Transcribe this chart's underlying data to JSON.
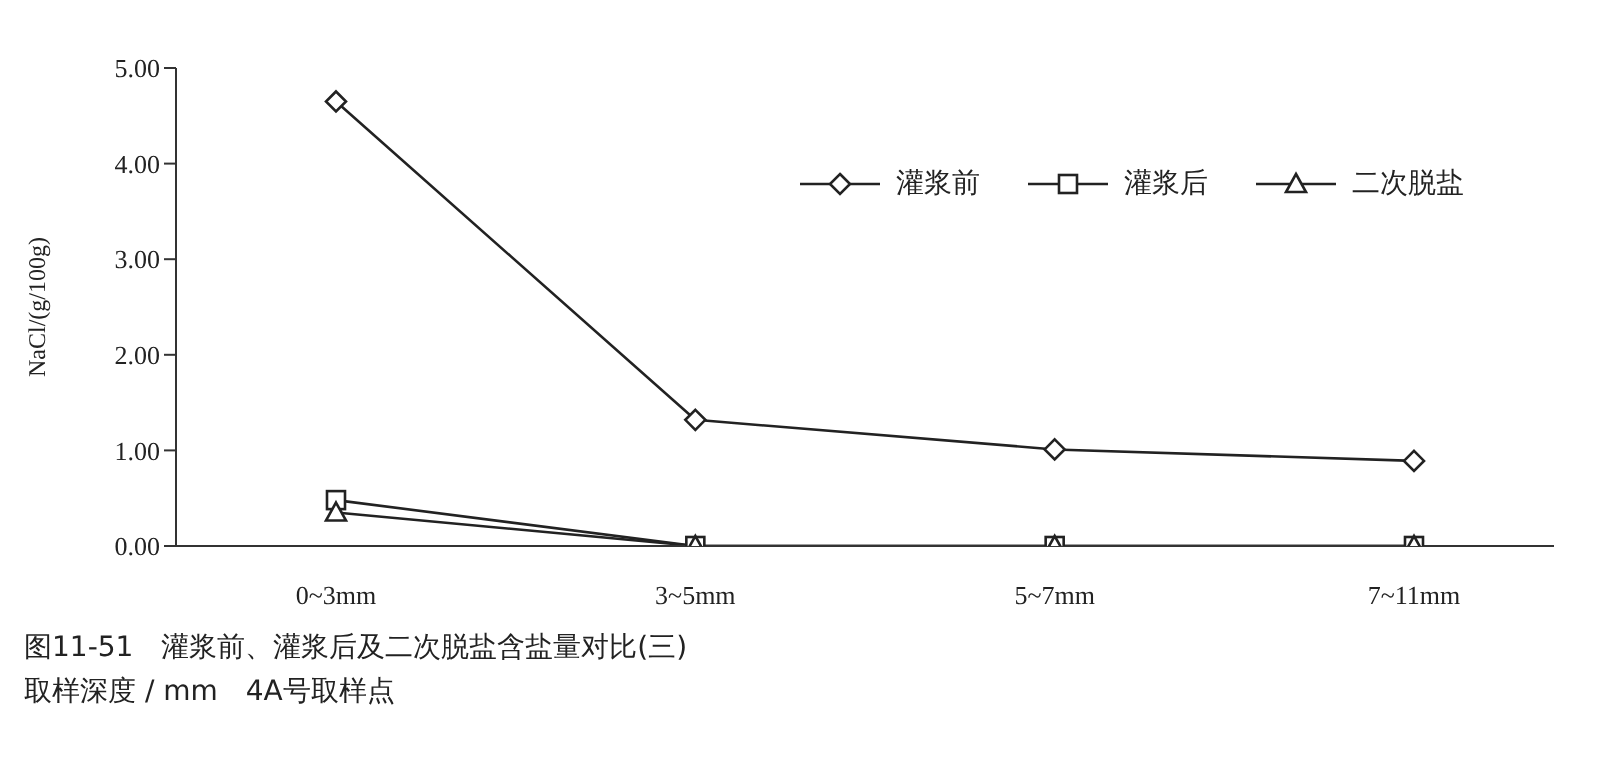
{
  "chart_data": {
    "type": "line",
    "title": "图11-51　灌浆前、灌浆后及二次脱盐含盐量对比(三)",
    "subtitle": "取样深度 / mm　4A号取样点",
    "ylabel": "NaCl/(g/100g)",
    "categories": [
      "0~3mm",
      "3~5mm",
      "5~7mm",
      "7~11mm"
    ],
    "series": [
      {
        "name": "灌浆前",
        "color": "#222222",
        "marker": "diamond",
        "values": [
          4.65,
          1.32,
          1.01,
          0.89
        ]
      },
      {
        "name": "灌浆后",
        "color": "#222222",
        "marker": "square",
        "values": [
          0.48,
          0,
          0,
          0
        ]
      },
      {
        "name": "二次脱盐",
        "color": "#222222",
        "marker": "triangle",
        "values": [
          0.35,
          0,
          0,
          0
        ]
      }
    ],
    "ylim": [
      0,
      5
    ],
    "yticks": [
      {
        "value": 0,
        "label": "0.00"
      },
      {
        "value": 1,
        "label": "1.00"
      },
      {
        "value": 2,
        "label": "2.00"
      },
      {
        "value": 3,
        "label": "3.00"
      },
      {
        "value": 4,
        "label": "4.00"
      },
      {
        "value": 5,
        "label": "5.00"
      }
    ],
    "grid": false,
    "legend": "top right",
    "line_style": "solid"
  }
}
